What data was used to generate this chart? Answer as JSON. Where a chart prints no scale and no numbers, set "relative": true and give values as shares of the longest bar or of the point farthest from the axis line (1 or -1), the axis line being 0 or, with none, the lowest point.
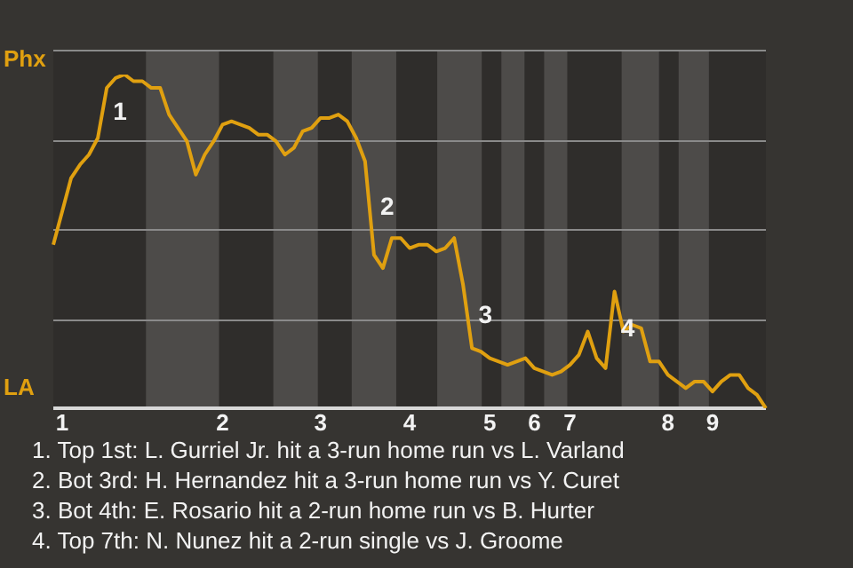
{
  "chart_data": {
    "type": "line",
    "relative": true,
    "categories": [
      null,
      "1",
      null,
      null,
      null,
      null,
      null,
      null,
      null,
      null,
      null,
      null,
      null,
      null,
      null,
      null,
      null,
      null,
      null,
      "2",
      null,
      null,
      null,
      null,
      null,
      null,
      null,
      null,
      null,
      null,
      "3",
      null,
      null,
      null,
      null,
      null,
      null,
      null,
      null,
      null,
      "4",
      null,
      null,
      null,
      null,
      null,
      null,
      null,
      null,
      "5",
      null,
      null,
      null,
      null,
      "6",
      null,
      null,
      null,
      "7",
      null,
      null,
      null,
      null,
      null,
      null,
      null,
      null,
      null,
      null,
      "8",
      null,
      null,
      null,
      null,
      "9",
      null,
      null,
      null,
      null,
      null,
      null
    ],
    "series": [
      {
        "color": "#e0a010",
        "values": [
          0.49,
          0.59,
          0.69,
          0.73,
          0.76,
          0.81,
          0.96,
          0.99,
          1,
          0.98,
          0.98,
          0.96,
          0.96,
          0.88,
          0.84,
          0.8,
          0.7,
          0.76,
          0.8,
          0.85,
          0.86,
          0.85,
          0.84,
          0.82,
          0.82,
          0.8,
          0.76,
          0.78,
          0.83,
          0.84,
          0.87,
          0.87,
          0.88,
          0.86,
          0.81,
          0.74,
          0.46,
          0.42,
          0.51,
          0.51,
          0.48,
          0.49,
          0.49,
          0.47,
          0.48,
          0.51,
          0.37,
          0.18,
          0.17,
          0.15,
          0.14,
          0.13,
          0.14,
          0.15,
          0.12,
          0.11,
          0.1,
          0.11,
          0.13,
          0.16,
          0.23,
          0.15,
          0.12,
          0.35,
          0.23,
          0.25,
          0.24,
          0.14,
          0.14,
          0.1,
          0.08,
          0.06,
          0.08,
          0.08,
          0.05,
          0.08,
          0.1,
          0.1,
          0.06,
          0.04,
          0
        ]
      }
    ],
    "grid": "y",
    "marker": "none",
    "line_style": "solid",
    "annotations": [
      "Phx",
      "LA",
      "1",
      "2",
      "3",
      "4",
      "1. Top 1st: L. Gurriel Jr. hit a 3-run home run vs L. Varland",
      "2. Bot 3rd: H. Hernandez hit a 3-run home run vs Y. Curet",
      "3. Bot 4th: E. Rosario hit a 2-run home run vs B. Hurter",
      "4. Top 7th: N. Nunez hit a 2-run single vs J. Groome"
    ]
  }
}
